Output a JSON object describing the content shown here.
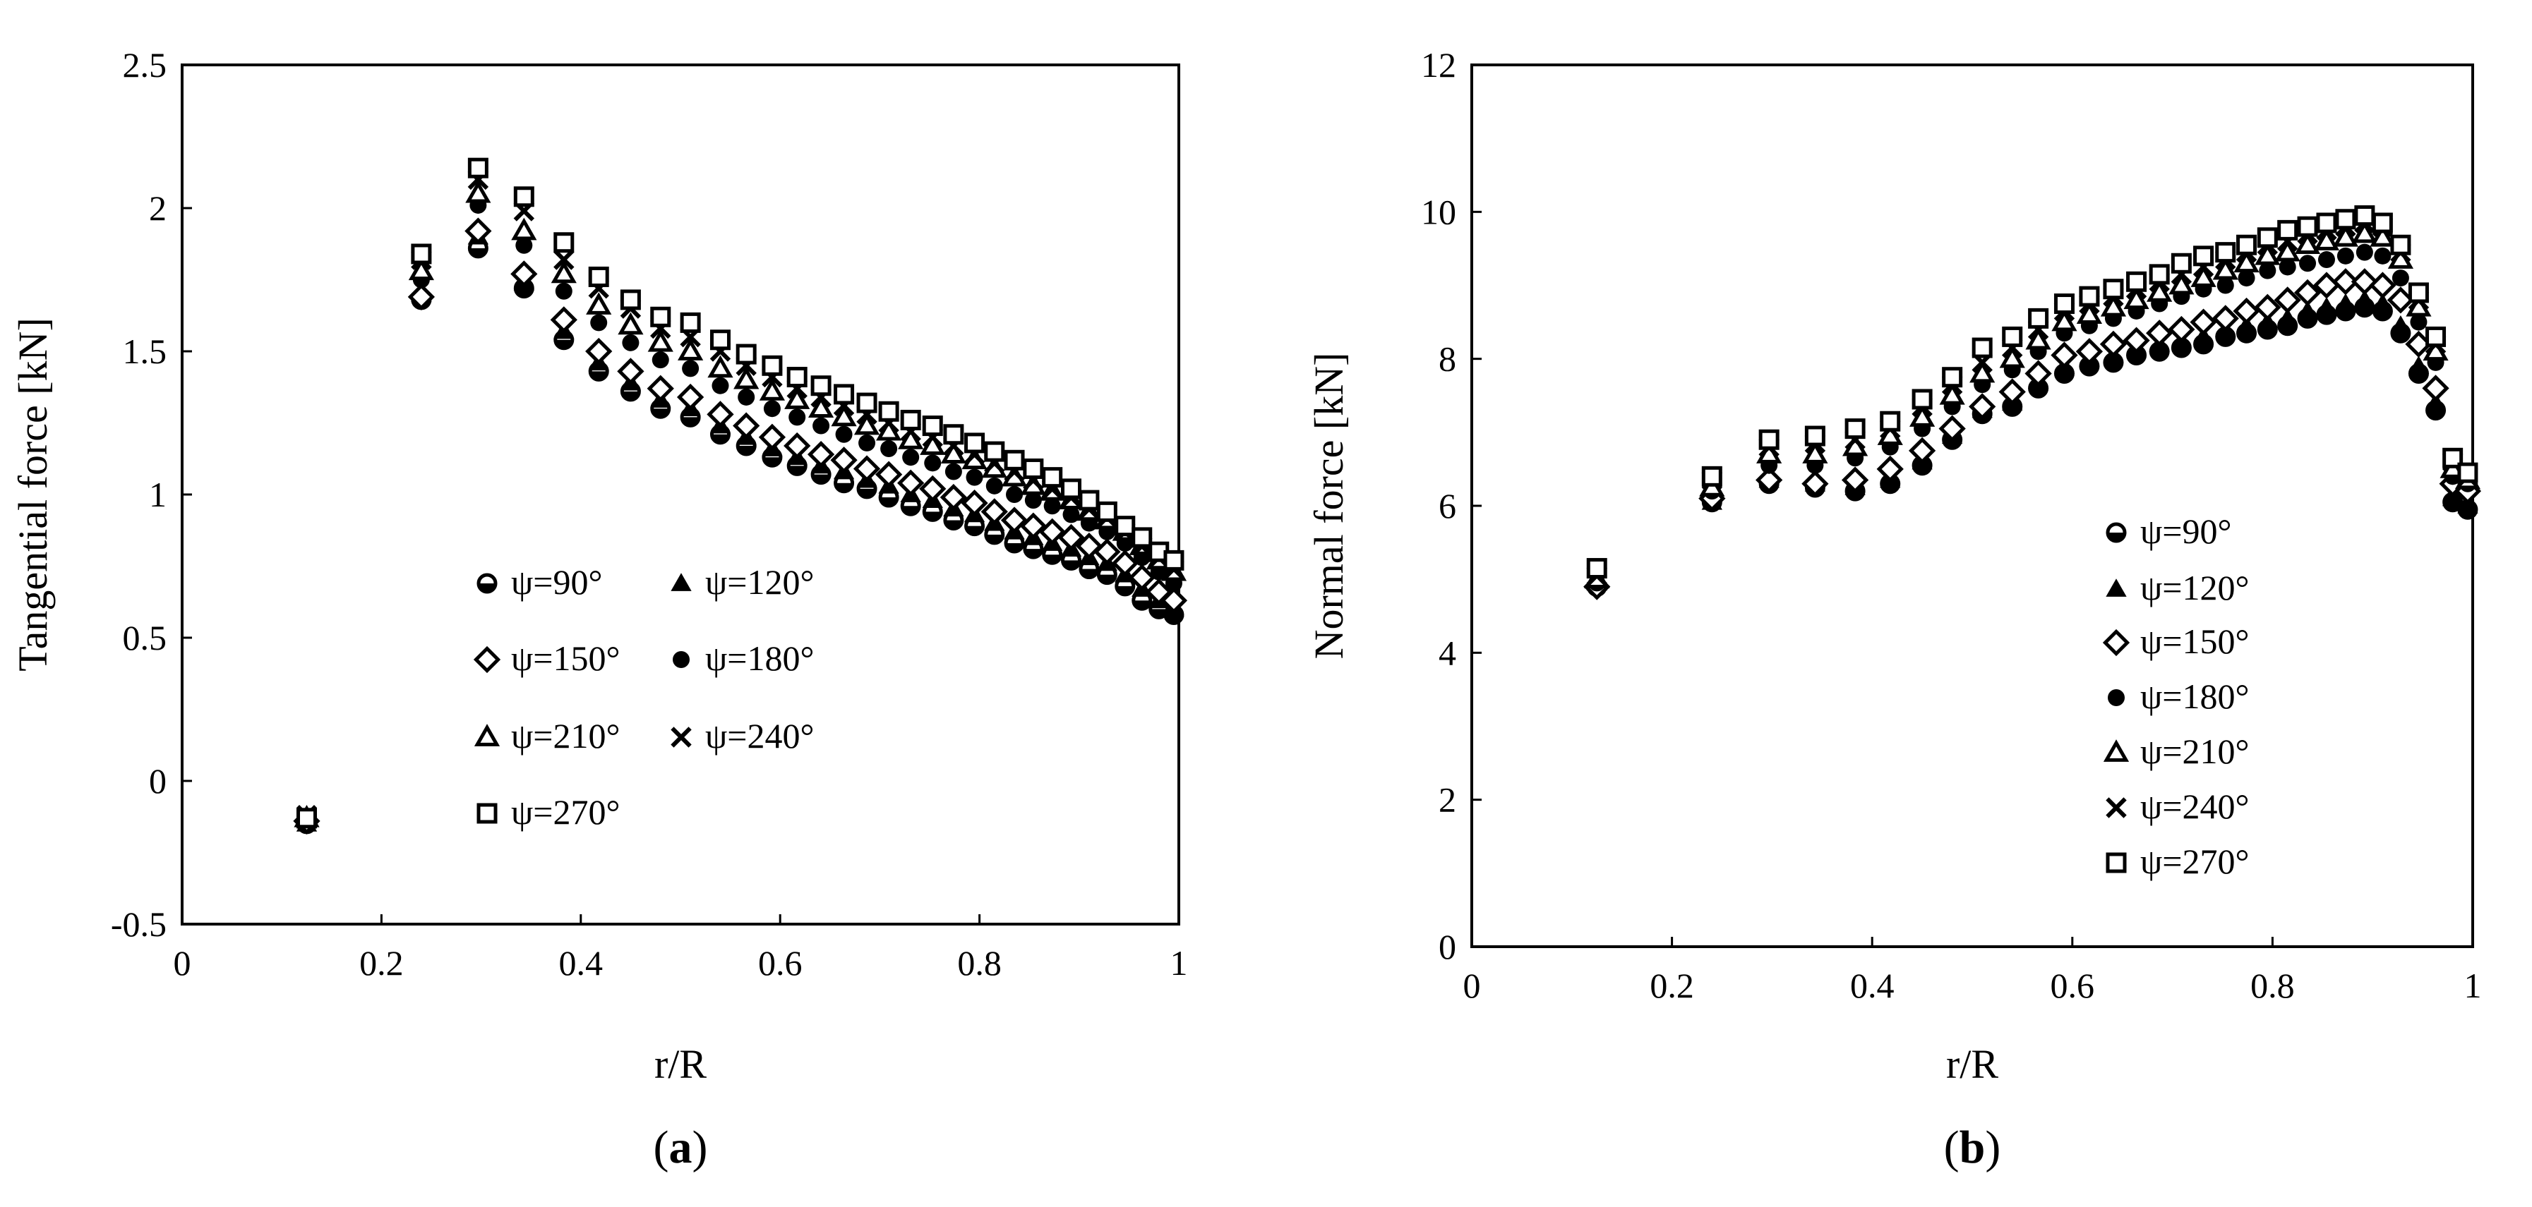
{
  "chart_data": [
    {
      "type": "scatter",
      "panel_label_prefix": "(",
      "panel_label_letter": "a",
      "panel_label_suffix": ")",
      "xlabel": "r/R",
      "ylabel": "Tangential force  [kN]",
      "xlim": [
        0,
        1
      ],
      "ylim": [
        -0.5,
        2.5
      ],
      "x_ticks": [
        0,
        0.2,
        0.4,
        0.6,
        0.8,
        1
      ],
      "x_tick_labels": [
        "0",
        "0.2",
        "0.4",
        "0.6",
        "0.8",
        "1"
      ],
      "y_ticks": [
        -0.5,
        0,
        0.5,
        1,
        1.5,
        2,
        2.5
      ],
      "y_tick_labels": [
        "-0.5",
        "0",
        "0.5",
        "1",
        "1.5",
        "2",
        "2.5"
      ],
      "grid": false,
      "legend_position": "center",
      "legend_columns": 2,
      "x": [
        0.125,
        0.24,
        0.297,
        0.343,
        0.383,
        0.418,
        0.45,
        0.48,
        0.51,
        0.54,
        0.566,
        0.592,
        0.617,
        0.641,
        0.664,
        0.687,
        0.709,
        0.731,
        0.753,
        0.774,
        0.795,
        0.815,
        0.835,
        0.854,
        0.873,
        0.892,
        0.91,
        0.928,
        0.946,
        0.963,
        0.98,
        0.995
      ],
      "series": [
        {
          "name": "ψ=90°",
          "marker": "circle-half",
          "values": [
            -0.15,
            1.68,
            1.86,
            1.72,
            1.54,
            1.43,
            1.36,
            1.3,
            1.27,
            1.21,
            1.17,
            1.13,
            1.1,
            1.07,
            1.04,
            1.02,
            0.99,
            0.96,
            0.94,
            0.91,
            0.89,
            0.86,
            0.83,
            0.81,
            0.79,
            0.77,
            0.74,
            0.72,
            0.68,
            0.63,
            0.6,
            0.58
          ]
        },
        {
          "name": "ψ=120°",
          "marker": "triangle-filled",
          "values": [
            -0.15,
            1.7,
            1.9,
            1.74,
            1.57,
            1.46,
            1.39,
            1.33,
            1.3,
            1.24,
            1.2,
            1.16,
            1.13,
            1.1,
            1.08,
            1.05,
            1.03,
            1.0,
            0.98,
            0.95,
            0.93,
            0.9,
            0.87,
            0.85,
            0.83,
            0.81,
            0.78,
            0.76,
            0.72,
            0.67,
            0.63,
            0.6
          ]
        },
        {
          "name": "ψ=150°",
          "marker": "diamond-open",
          "values": [
            -0.14,
            1.69,
            1.92,
            1.77,
            1.61,
            1.5,
            1.43,
            1.37,
            1.34,
            1.28,
            1.24,
            1.2,
            1.17,
            1.14,
            1.12,
            1.09,
            1.07,
            1.04,
            1.02,
            0.99,
            0.97,
            0.94,
            0.91,
            0.89,
            0.87,
            0.85,
            0.82,
            0.8,
            0.76,
            0.71,
            0.66,
            0.63
          ]
        },
        {
          "name": "ψ=180°",
          "marker": "circle-filled",
          "values": [
            -0.13,
            1.75,
            2.01,
            1.87,
            1.71,
            1.6,
            1.53,
            1.47,
            1.44,
            1.38,
            1.34,
            1.3,
            1.27,
            1.24,
            1.21,
            1.18,
            1.16,
            1.13,
            1.11,
            1.08,
            1.06,
            1.03,
            1.0,
            0.98,
            0.96,
            0.93,
            0.9,
            0.87,
            0.83,
            0.78,
            0.73,
            0.69
          ]
        },
        {
          "name": "ψ=210°",
          "marker": "triangle-open",
          "values": [
            -0.13,
            1.78,
            2.05,
            1.92,
            1.77,
            1.66,
            1.59,
            1.53,
            1.5,
            1.44,
            1.4,
            1.36,
            1.33,
            1.3,
            1.27,
            1.24,
            1.22,
            1.19,
            1.17,
            1.14,
            1.12,
            1.09,
            1.06,
            1.03,
            1.01,
            0.98,
            0.94,
            0.91,
            0.87,
            0.82,
            0.77,
            0.73
          ]
        },
        {
          "name": "ψ=240°",
          "marker": "cross",
          "values": [
            -0.12,
            1.82,
            2.1,
            1.99,
            1.82,
            1.72,
            1.65,
            1.58,
            1.55,
            1.5,
            1.45,
            1.41,
            1.37,
            1.34,
            1.31,
            1.28,
            1.25,
            1.22,
            1.2,
            1.17,
            1.14,
            1.11,
            1.08,
            1.05,
            1.02,
            0.99,
            0.95,
            0.92,
            0.87,
            0.82,
            0.78,
            0.74
          ]
        },
        {
          "name": "ψ=270°",
          "marker": "square-open",
          "values": [
            -0.13,
            1.84,
            2.14,
            2.04,
            1.88,
            1.76,
            1.68,
            1.62,
            1.6,
            1.54,
            1.49,
            1.45,
            1.41,
            1.38,
            1.35,
            1.32,
            1.29,
            1.26,
            1.24,
            1.21,
            1.18,
            1.15,
            1.12,
            1.09,
            1.06,
            1.02,
            0.98,
            0.94,
            0.89,
            0.85,
            0.8,
            0.77
          ]
        }
      ]
    },
    {
      "type": "scatter",
      "panel_label_prefix": "(",
      "panel_label_letter": "b",
      "panel_label_suffix": ")",
      "xlabel": "r/R",
      "ylabel": "Normal  force  [kN]",
      "xlim": [
        0,
        1
      ],
      "ylim": [
        0,
        12
      ],
      "x_ticks": [
        0,
        0.2,
        0.4,
        0.6,
        0.8,
        1
      ],
      "x_tick_labels": [
        "0",
        "0.2",
        "0.4",
        "0.6",
        "0.8",
        "1"
      ],
      "y_ticks": [
        0,
        2,
        4,
        6,
        8,
        10,
        12
      ],
      "y_tick_labels": [
        "0",
        "2",
        "4",
        "6",
        "8",
        "10",
        "12"
      ],
      "grid": false,
      "legend_position": "right",
      "legend_columns": 1,
      "x": [
        0.125,
        0.24,
        0.297,
        0.343,
        0.383,
        0.418,
        0.45,
        0.48,
        0.51,
        0.54,
        0.566,
        0.592,
        0.617,
        0.641,
        0.664,
        0.687,
        0.709,
        0.731,
        0.753,
        0.774,
        0.795,
        0.815,
        0.835,
        0.854,
        0.873,
        0.892,
        0.91,
        0.928,
        0.946,
        0.963,
        0.98,
        0.995
      ],
      "series": [
        {
          "name": "ψ=90°",
          "marker": "circle-half",
          "values": [
            4.9,
            6.05,
            6.3,
            6.25,
            6.2,
            6.3,
            6.55,
            6.9,
            7.25,
            7.35,
            7.6,
            7.8,
            7.9,
            7.95,
            8.05,
            8.1,
            8.15,
            8.2,
            8.3,
            8.35,
            8.4,
            8.45,
            8.55,
            8.6,
            8.65,
            8.7,
            8.65,
            8.35,
            7.8,
            7.3,
            6.05,
            5.95
          ]
        },
        {
          "name": "ψ=120°",
          "marker": "triangle-filled",
          "values": [
            4.95,
            6.05,
            6.35,
            6.3,
            6.25,
            6.35,
            6.6,
            6.95,
            7.3,
            7.4,
            7.7,
            7.9,
            8.0,
            8.05,
            8.15,
            8.2,
            8.25,
            8.3,
            8.4,
            8.45,
            8.5,
            8.55,
            8.65,
            8.7,
            8.75,
            8.8,
            8.75,
            8.45,
            7.9,
            7.4,
            6.1,
            6.0
          ]
        },
        {
          "name": "ψ=150°",
          "marker": "diamond-open",
          "values": [
            4.9,
            6.1,
            6.35,
            6.3,
            6.35,
            6.5,
            6.75,
            7.05,
            7.35,
            7.55,
            7.8,
            8.05,
            8.1,
            8.2,
            8.25,
            8.35,
            8.4,
            8.5,
            8.55,
            8.65,
            8.7,
            8.8,
            8.9,
            9.0,
            9.05,
            9.05,
            9.0,
            8.8,
            8.2,
            7.6,
            6.3,
            6.2
          ]
        },
        {
          "name": "ψ=180°",
          "marker": "circle-filled",
          "values": [
            4.95,
            6.2,
            6.55,
            6.55,
            6.65,
            6.8,
            7.05,
            7.35,
            7.65,
            7.85,
            8.1,
            8.35,
            8.45,
            8.55,
            8.65,
            8.75,
            8.85,
            8.95,
            9.0,
            9.1,
            9.2,
            9.25,
            9.3,
            9.35,
            9.4,
            9.45,
            9.4,
            9.1,
            8.5,
            7.95,
            6.4,
            6.3
          ]
        },
        {
          "name": "ψ=210°",
          "marker": "triangle-open",
          "values": [
            5.0,
            6.25,
            6.7,
            6.7,
            6.8,
            6.95,
            7.2,
            7.5,
            7.8,
            8.0,
            8.25,
            8.5,
            8.6,
            8.7,
            8.8,
            8.9,
            9.0,
            9.1,
            9.2,
            9.3,
            9.4,
            9.45,
            9.55,
            9.6,
            9.65,
            9.7,
            9.65,
            9.35,
            8.7,
            8.1,
            6.5,
            6.35
          ]
        },
        {
          "name": "ψ=240°",
          "marker": "cross",
          "values": [
            5.05,
            6.35,
            6.8,
            6.85,
            6.9,
            7.05,
            7.35,
            7.65,
            7.95,
            8.15,
            8.4,
            8.65,
            8.75,
            8.85,
            8.95,
            9.05,
            9.15,
            9.25,
            9.35,
            9.45,
            9.55,
            9.6,
            9.7,
            9.75,
            9.8,
            9.85,
            9.8,
            9.45,
            8.8,
            8.2,
            6.6,
            6.4
          ]
        },
        {
          "name": "ψ=270°",
          "marker": "square-open",
          "values": [
            5.15,
            6.4,
            6.9,
            6.95,
            7.05,
            7.15,
            7.45,
            7.75,
            8.15,
            8.3,
            8.55,
            8.75,
            8.85,
            8.95,
            9.05,
            9.15,
            9.3,
            9.4,
            9.45,
            9.55,
            9.65,
            9.75,
            9.8,
            9.85,
            9.9,
            9.95,
            9.85,
            9.55,
            8.9,
            8.3,
            6.65,
            6.45
          ]
        }
      ]
    }
  ]
}
